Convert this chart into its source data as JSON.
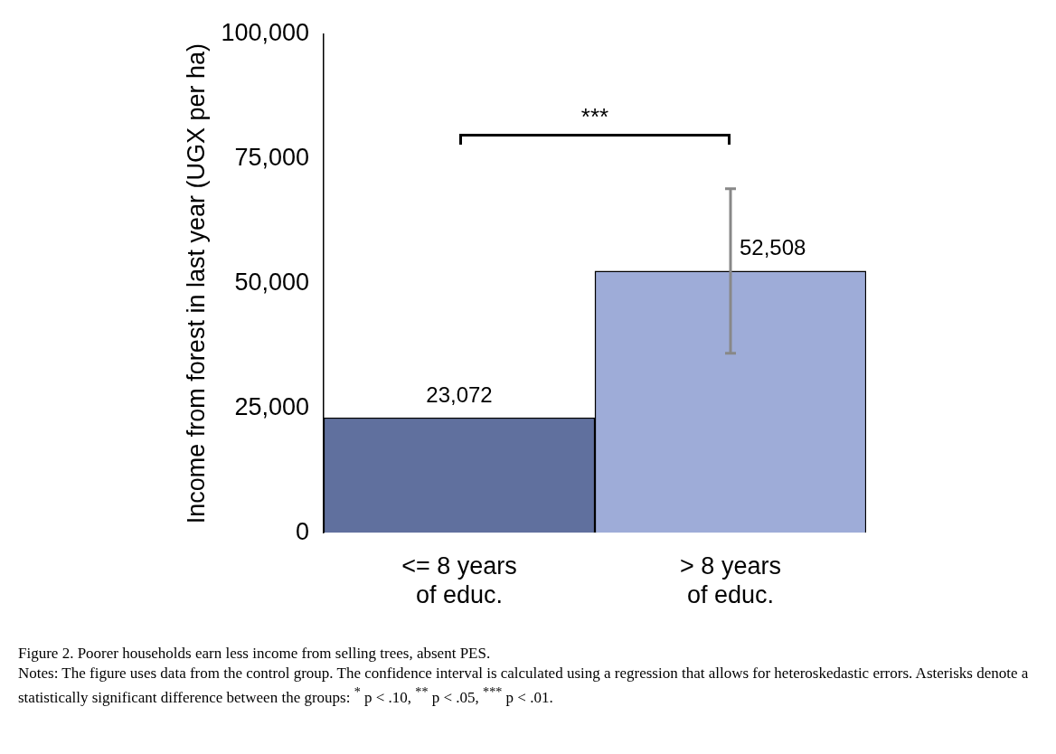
{
  "chart_data": {
    "type": "bar",
    "title": "Figure 2. Poorer households earn less income from selling trees, absent PES.",
    "ylabel": "Income from forest in last year (UGX per ha)",
    "categories": [
      "<= 8 years of educ.",
      "> 8 years of educ."
    ],
    "values": [
      23072,
      52508
    ],
    "colors": [
      "#60709e",
      "#9eacd8"
    ],
    "errors": [
      null,
      [
        36000,
        69000
      ]
    ],
    "value_labels": [
      "23,072",
      "52,508"
    ],
    "ylim": [
      0,
      100000
    ],
    "yticks": [
      {
        "value": 0,
        "label": "0"
      },
      {
        "value": 25000,
        "label": "25,000"
      },
      {
        "value": 50000,
        "label": "50,000"
      },
      {
        "value": 75000,
        "label": "75,000"
      },
      {
        "value": 100000,
        "label": "100,000"
      }
    ],
    "grid": false,
    "legend": false,
    "annotations": [
      "***",
      "Notes: The figure uses data from the control group. The confidence interval is calculated using a regression that allows for heteroskedastic errors. Asterisks denote a statistically significant difference between the groups: $^{*}$ p < .10, $^{**}$ p < .05, $^{***}$ p < .01."
    ]
  }
}
